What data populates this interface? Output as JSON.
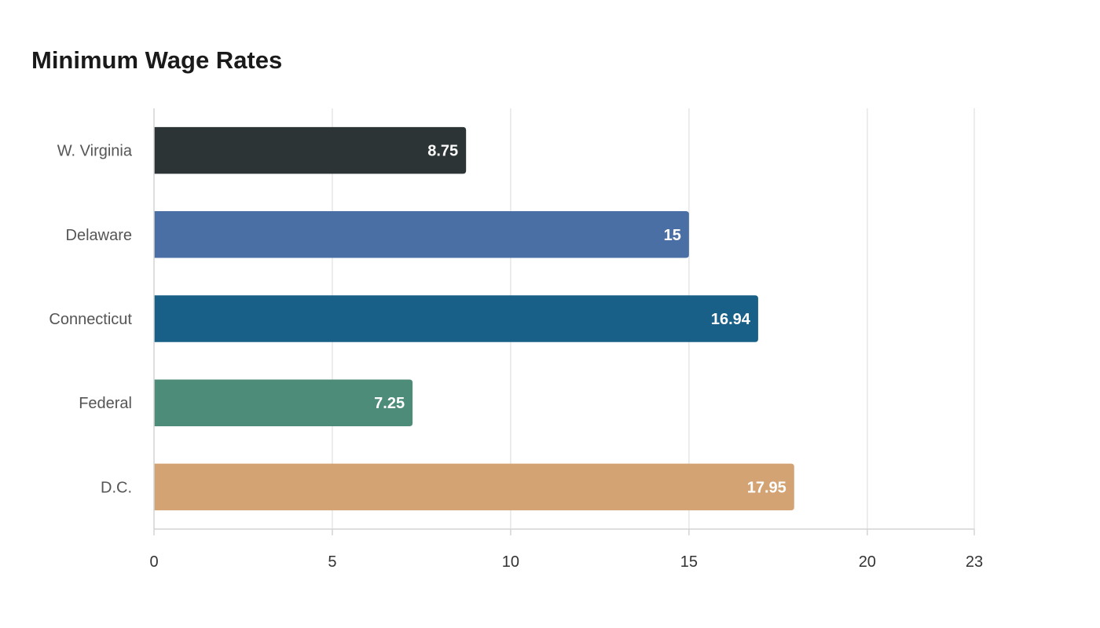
{
  "chart_data": {
    "type": "bar",
    "orientation": "horizontal",
    "title": "Minimum Wage Rates",
    "xlabel": "",
    "ylabel": "",
    "categories": [
      "W. Virginia",
      "Delaware",
      "Connecticut",
      "Federal",
      "D.C."
    ],
    "values": [
      8.75,
      15,
      16.94,
      7.25,
      17.95
    ],
    "colors": [
      "#2d3436",
      "#4a6fa5",
      "#186088",
      "#4e8c7a",
      "#d4a373"
    ],
    "xlim": [
      0,
      23
    ],
    "xticks": [
      0,
      5,
      10,
      15,
      20,
      23
    ],
    "grid": true,
    "legend": "none"
  }
}
